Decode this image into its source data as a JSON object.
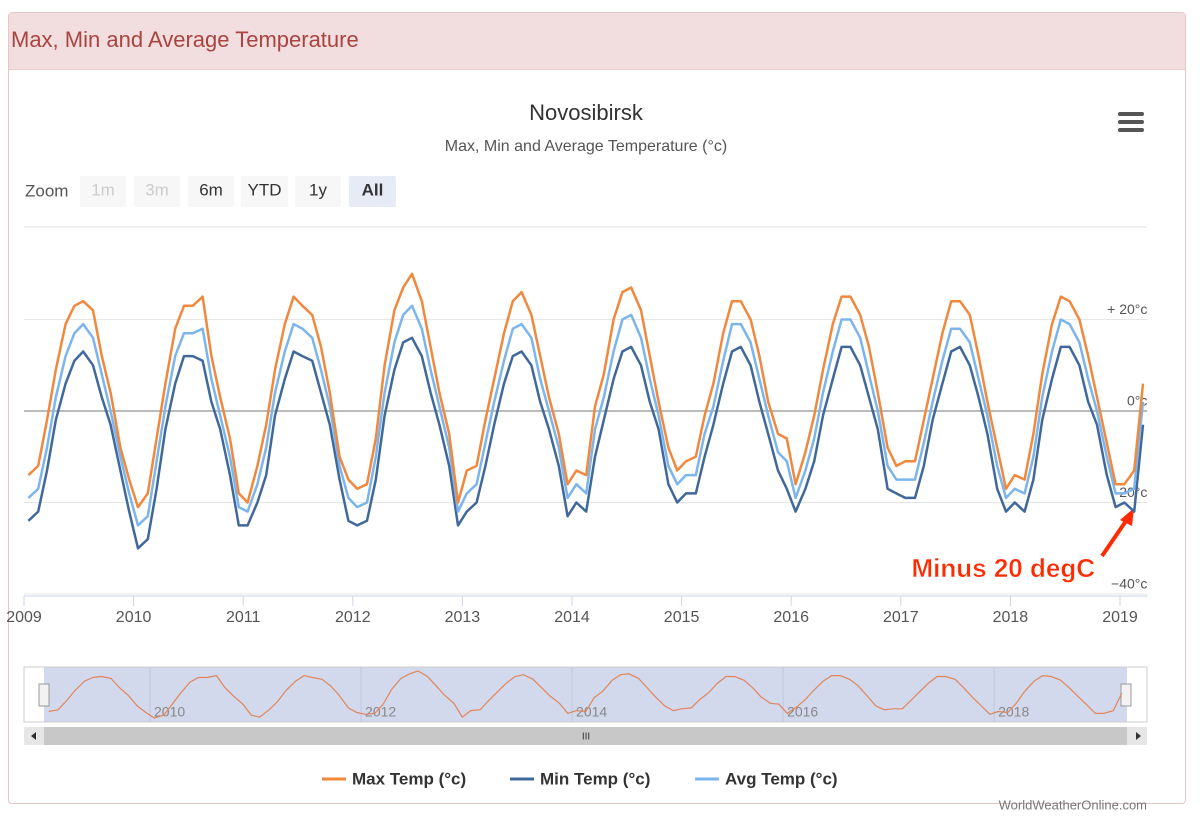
{
  "header": {
    "title": "Max, Min and Average Temperature"
  },
  "chart_data": {
    "type": "line",
    "title": "Novosibirsk",
    "subtitle": "Max, Min and Average Temperature (°c)",
    "zoom": {
      "label": "Zoom",
      "buttons": [
        "1m",
        "3m",
        "6m",
        "YTD",
        "1y",
        "All"
      ]
    },
    "annotation": "Minus 20 degC",
    "credits": "WorldWeatherOnline.com",
    "xlim": [
      2009,
      2019.25
    ],
    "xticks": [
      2009,
      2010,
      2011,
      2012,
      2013,
      2014,
      2015,
      2016,
      2017,
      2018,
      2019
    ],
    "ylim": [
      -40,
      40
    ],
    "yticks": [
      {
        "value": -40,
        "label": "−40°c"
      },
      {
        "value": -20,
        "label": "-20°c"
      },
      {
        "value": 0,
        "label": "0°c"
      },
      {
        "value": 20,
        "label": "+ 20°c"
      }
    ],
    "grid": true,
    "navigator_ticks": [
      2010,
      2012,
      2014,
      2016,
      2018
    ],
    "x": [
      2009.04,
      2009.13,
      2009.21,
      2009.29,
      2009.38,
      2009.46,
      2009.54,
      2009.63,
      2009.71,
      2009.79,
      2009.88,
      2009.96,
      2010.04,
      2010.13,
      2010.21,
      2010.29,
      2010.38,
      2010.46,
      2010.54,
      2010.63,
      2010.71,
      2010.79,
      2010.88,
      2010.96,
      2011.04,
      2011.13,
      2011.21,
      2011.29,
      2011.38,
      2011.46,
      2011.54,
      2011.63,
      2011.71,
      2011.79,
      2011.88,
      2011.96,
      2012.04,
      2012.13,
      2012.21,
      2012.29,
      2012.38,
      2012.46,
      2012.54,
      2012.63,
      2012.71,
      2012.79,
      2012.88,
      2012.96,
      2013.04,
      2013.13,
      2013.21,
      2013.29,
      2013.38,
      2013.46,
      2013.54,
      2013.63,
      2013.71,
      2013.79,
      2013.88,
      2013.96,
      2014.04,
      2014.13,
      2014.21,
      2014.29,
      2014.38,
      2014.46,
      2014.54,
      2014.63,
      2014.71,
      2014.79,
      2014.88,
      2014.96,
      2015.04,
      2015.13,
      2015.21,
      2015.29,
      2015.38,
      2015.46,
      2015.54,
      2015.63,
      2015.71,
      2015.79,
      2015.88,
      2015.96,
      2016.04,
      2016.13,
      2016.21,
      2016.29,
      2016.38,
      2016.46,
      2016.54,
      2016.63,
      2016.71,
      2016.79,
      2016.88,
      2016.96,
      2017.04,
      2017.13,
      2017.21,
      2017.29,
      2017.38,
      2017.46,
      2017.54,
      2017.63,
      2017.71,
      2017.79,
      2017.88,
      2017.96,
      2018.04,
      2018.13,
      2018.21,
      2018.29,
      2018.38,
      2018.46,
      2018.54,
      2018.63,
      2018.71,
      2018.79,
      2018.88,
      2018.96,
      2019.04,
      2019.13,
      2019.21
    ],
    "series": [
      {
        "name": "Max Temp (°c)",
        "color": "#f0883e",
        "values": [
          -14,
          -12,
          -2,
          9,
          19,
          23,
          24,
          22,
          12,
          4,
          -8,
          -15,
          -21,
          -18,
          -6,
          6,
          18,
          23,
          23,
          25,
          12,
          3,
          -6,
          -18,
          -20,
          -12,
          -3,
          9,
          19,
          25,
          23,
          21,
          14,
          4,
          -10,
          -15,
          -17,
          -16,
          -6,
          10,
          22,
          27,
          30,
          24,
          14,
          4,
          -5,
          -20,
          -13,
          -12,
          -2,
          7,
          17,
          24,
          26,
          21,
          12,
          3,
          -5,
          -16,
          -13,
          -14,
          1,
          8,
          20,
          26,
          27,
          22,
          12,
          2,
          -8,
          -13,
          -11,
          -10,
          -1,
          6,
          17,
          24,
          24,
          20,
          12,
          2,
          -5,
          -6,
          -16,
          -9,
          -1,
          9,
          19,
          25,
          25,
          21,
          14,
          4,
          -8,
          -12,
          -11,
          -11,
          -2,
          7,
          17,
          24,
          24,
          21,
          12,
          2,
          -8,
          -17,
          -14,
          -15,
          -5,
          8,
          19,
          25,
          24,
          20,
          12,
          3,
          -7,
          -16,
          -16,
          -13,
          6
        ]
      },
      {
        "name": "Min Temp (°c)",
        "color": "#41689b",
        "values": [
          -24,
          -22,
          -13,
          -2,
          6,
          11,
          13,
          10,
          3,
          -3,
          -13,
          -22,
          -30,
          -28,
          -17,
          -4,
          6,
          12,
          12,
          11,
          2,
          -4,
          -14,
          -25,
          -25,
          -20,
          -14,
          -1,
          7,
          13,
          12,
          11,
          4,
          -3,
          -15,
          -24,
          -25,
          -24,
          -15,
          -1,
          9,
          15,
          16,
          12,
          4,
          -3,
          -12,
          -25,
          -22,
          -20,
          -12,
          -3,
          6,
          12,
          13,
          10,
          2,
          -4,
          -12,
          -23,
          -20,
          -22,
          -10,
          -2,
          7,
          13,
          14,
          10,
          2,
          -4,
          -16,
          -20,
          -18,
          -18,
          -10,
          -3,
          6,
          13,
          14,
          10,
          2,
          -5,
          -13,
          -17,
          -22,
          -17,
          -11,
          -1,
          7,
          14,
          14,
          10,
          3,
          -4,
          -17,
          -18,
          -19,
          -19,
          -12,
          -2,
          6,
          13,
          14,
          10,
          3,
          -5,
          -17,
          -22,
          -20,
          -22,
          -15,
          -2,
          7,
          14,
          14,
          10,
          2,
          -3,
          -14,
          -21,
          -20,
          -22,
          -3
        ]
      },
      {
        "name": "Avg Temp (°c)",
        "color": "#7cb5ec",
        "values": [
          -19,
          -17,
          -8,
          3,
          12,
          17,
          19,
          16,
          8,
          0,
          -10,
          -18,
          -25,
          -23,
          -11,
          1,
          12,
          17,
          17,
          18,
          7,
          -1,
          -10,
          -21,
          -22,
          -16,
          -8,
          4,
          13,
          19,
          18,
          16,
          9,
          1,
          -12,
          -19,
          -21,
          -20,
          -10,
          4,
          15,
          21,
          23,
          18,
          9,
          1,
          -8,
          -22,
          -18,
          -16,
          -7,
          2,
          11,
          18,
          19,
          16,
          7,
          0,
          -8,
          -19,
          -16,
          -18,
          -4,
          3,
          13,
          20,
          21,
          16,
          7,
          -1,
          -12,
          -16,
          -14,
          -14,
          -5,
          1,
          11,
          19,
          19,
          15,
          7,
          -1,
          -9,
          -11,
          -19,
          -13,
          -6,
          4,
          13,
          20,
          20,
          16,
          8,
          0,
          -12,
          -15,
          -15,
          -15,
          -7,
          2,
          11,
          18,
          18,
          15,
          7,
          -1,
          -12,
          -19,
          -17,
          -18,
          -10,
          3,
          13,
          20,
          19,
          15,
          7,
          0,
          -10,
          -18,
          -18,
          -17,
          2
        ]
      }
    ]
  }
}
